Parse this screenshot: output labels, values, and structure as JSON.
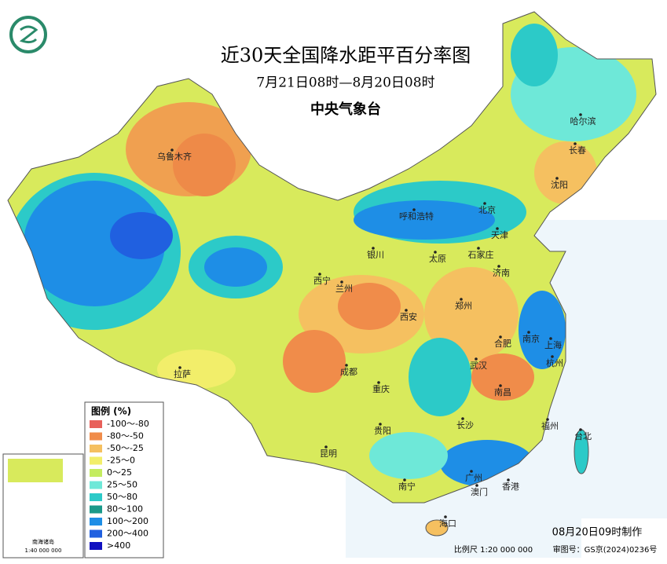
{
  "title": "近30天全国降水距平百分率图",
  "period": "7月21日08时—8月20日08时",
  "publisher": "中央气象台",
  "legend": {
    "title": "图例 (%)",
    "items": [
      {
        "label": "-100～-80",
        "color": "#e8605a"
      },
      {
        "label": "-80～-50",
        "color": "#f08c4a"
      },
      {
        "label": "-50～-25",
        "color": "#f5c060"
      },
      {
        "label": "-25～0",
        "color": "#f2ee6a"
      },
      {
        "label": "0～25",
        "color": "#c4ec60"
      },
      {
        "label": "25～50",
        "color": "#6ee8d8"
      },
      {
        "label": "50～80",
        "color": "#2ccac8"
      },
      {
        "label": "80～100",
        "color": "#1a9a8a"
      },
      {
        "label": "100～200",
        "color": "#1e8ee6"
      },
      {
        "label": "200～400",
        "color": "#2060e0"
      },
      {
        "label": ">400",
        "color": "#1010c0"
      }
    ]
  },
  "cities": [
    "乌鲁木齐",
    "呼和浩特",
    "北京",
    "天津",
    "哈尔滨",
    "长春",
    "沈阳",
    "银川",
    "太原",
    "石家庄",
    "济南",
    "西宁",
    "兰州",
    "郑州",
    "西安",
    "南京",
    "合肥",
    "上海",
    "杭州",
    "拉萨",
    "成都",
    "武汉",
    "重庆",
    "南昌",
    "长沙",
    "福州",
    "贵阳",
    "台北",
    "昆明",
    "广州",
    "南宁",
    "澳门",
    "香港",
    "海口"
  ],
  "inset": {
    "title": "南海诸岛",
    "scale": "1:40 000 000"
  },
  "footer": {
    "made": "08月20日09时制作",
    "scale": "比例尺 1:20 000 000",
    "approval": "审图号：GS京(2024)0236号"
  }
}
